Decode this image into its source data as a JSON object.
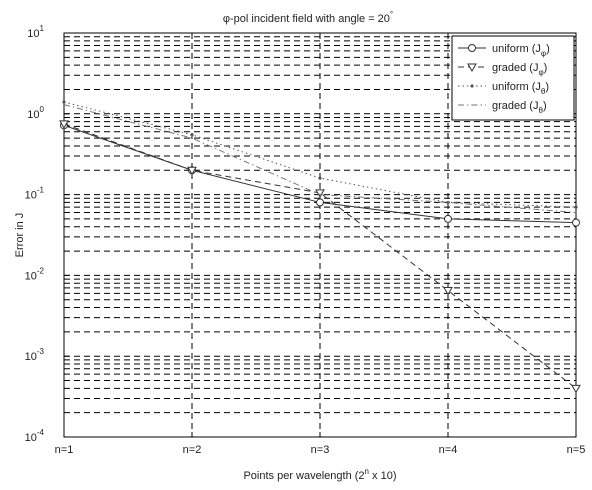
{
  "chart_data": {
    "type": "line",
    "title_prefix": "φ-pol incident field with angle = 20",
    "title_sup": "°",
    "xlabel_prefix": "Points per wavelength (2",
    "xlabel_sup": "n",
    "xlabel_suffix": " x 10)",
    "ylabel": "Error in J",
    "x": [
      1,
      2,
      3,
      4,
      5
    ],
    "categories": [
      "n=1",
      "n=2",
      "n=3",
      "n=4",
      "n=5"
    ],
    "y_scale": "log",
    "ylim": [
      0.0001,
      10
    ],
    "yticks": [
      {
        "value": 0.0001,
        "base": "10",
        "exp": "-4"
      },
      {
        "value": 0.001,
        "base": "10",
        "exp": "-3"
      },
      {
        "value": 0.01,
        "base": "10",
        "exp": "-2"
      },
      {
        "value": 0.1,
        "base": "10",
        "exp": "-1"
      },
      {
        "value": 1,
        "base": "10",
        "exp": "0"
      },
      {
        "value": 10,
        "base": "10",
        "exp": "1"
      }
    ],
    "grid": true,
    "legend_position": "top-right",
    "series": [
      {
        "name": "uniform (J_φ)",
        "label_main": "uniform (J",
        "label_sub": "φ",
        "label_end": ")",
        "values": [
          0.72,
          0.2,
          0.08,
          0.05,
          0.045
        ],
        "style": "solid",
        "marker": "circle",
        "color": "#333333"
      },
      {
        "name": "graded (J_φ)",
        "label_main": "graded (J",
        "label_sub": "φ",
        "label_end": ")",
        "values": [
          0.75,
          0.2,
          0.105,
          0.0065,
          0.0004
        ],
        "style": "dashed",
        "marker": "triangle",
        "color": "#333333"
      },
      {
        "name": "uniform (J_θ)",
        "label_main": "uniform (J",
        "label_sub": "θ",
        "label_end": ")",
        "values": [
          1.4,
          0.55,
          0.16,
          0.08,
          0.07
        ],
        "style": "dotted",
        "marker": "dot",
        "color": "#555555"
      },
      {
        "name": "graded (J_θ)",
        "label_main": "graded (J",
        "label_sub": "θ",
        "label_end": ")",
        "values": [
          1.3,
          0.5,
          0.1,
          0.08,
          0.06
        ],
        "style": "dashdot",
        "marker": "none",
        "color": "#777777"
      }
    ]
  }
}
